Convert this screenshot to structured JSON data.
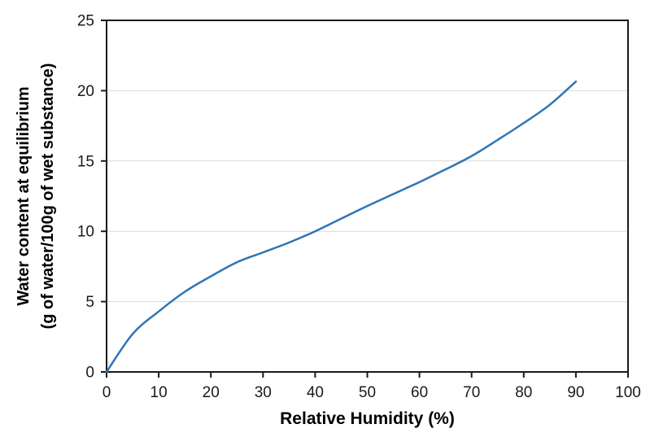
{
  "chart_data": {
    "type": "line",
    "title": "",
    "xlabel": "Relative Humidity (%)",
    "ylabel": "Water content at equilibrium (g of water/100g of wet substance)",
    "ylabel_lines": [
      "Water content at equilibrium",
      "(g of water/100g of wet substance)"
    ],
    "xlim": [
      0,
      100
    ],
    "ylim": [
      0,
      25
    ],
    "x_ticks": [
      0,
      10,
      20,
      30,
      40,
      50,
      60,
      70,
      80,
      90,
      100
    ],
    "y_ticks": [
      0,
      5,
      10,
      15,
      20,
      25
    ],
    "grid": "horizontal-only",
    "legend": "none",
    "series": [
      {
        "name": "water content at equilibrium",
        "color": "#2E75B6",
        "x": [
          0,
          5,
          10,
          15,
          20,
          25,
          30,
          35,
          40,
          45,
          50,
          55,
          60,
          65,
          70,
          75,
          80,
          85,
          90
        ],
        "y": [
          0,
          2.7,
          4.3,
          5.7,
          6.8,
          7.8,
          8.5,
          9.2,
          10.0,
          10.9,
          11.8,
          12.65,
          13.5,
          14.4,
          15.35,
          16.5,
          17.7,
          19.0,
          20.65
        ]
      }
    ],
    "colors": {
      "axis": "#1a1a1a",
      "gridline": "#d9d9d9",
      "text": "#1a1a1a",
      "background": "#ffffff"
    }
  }
}
